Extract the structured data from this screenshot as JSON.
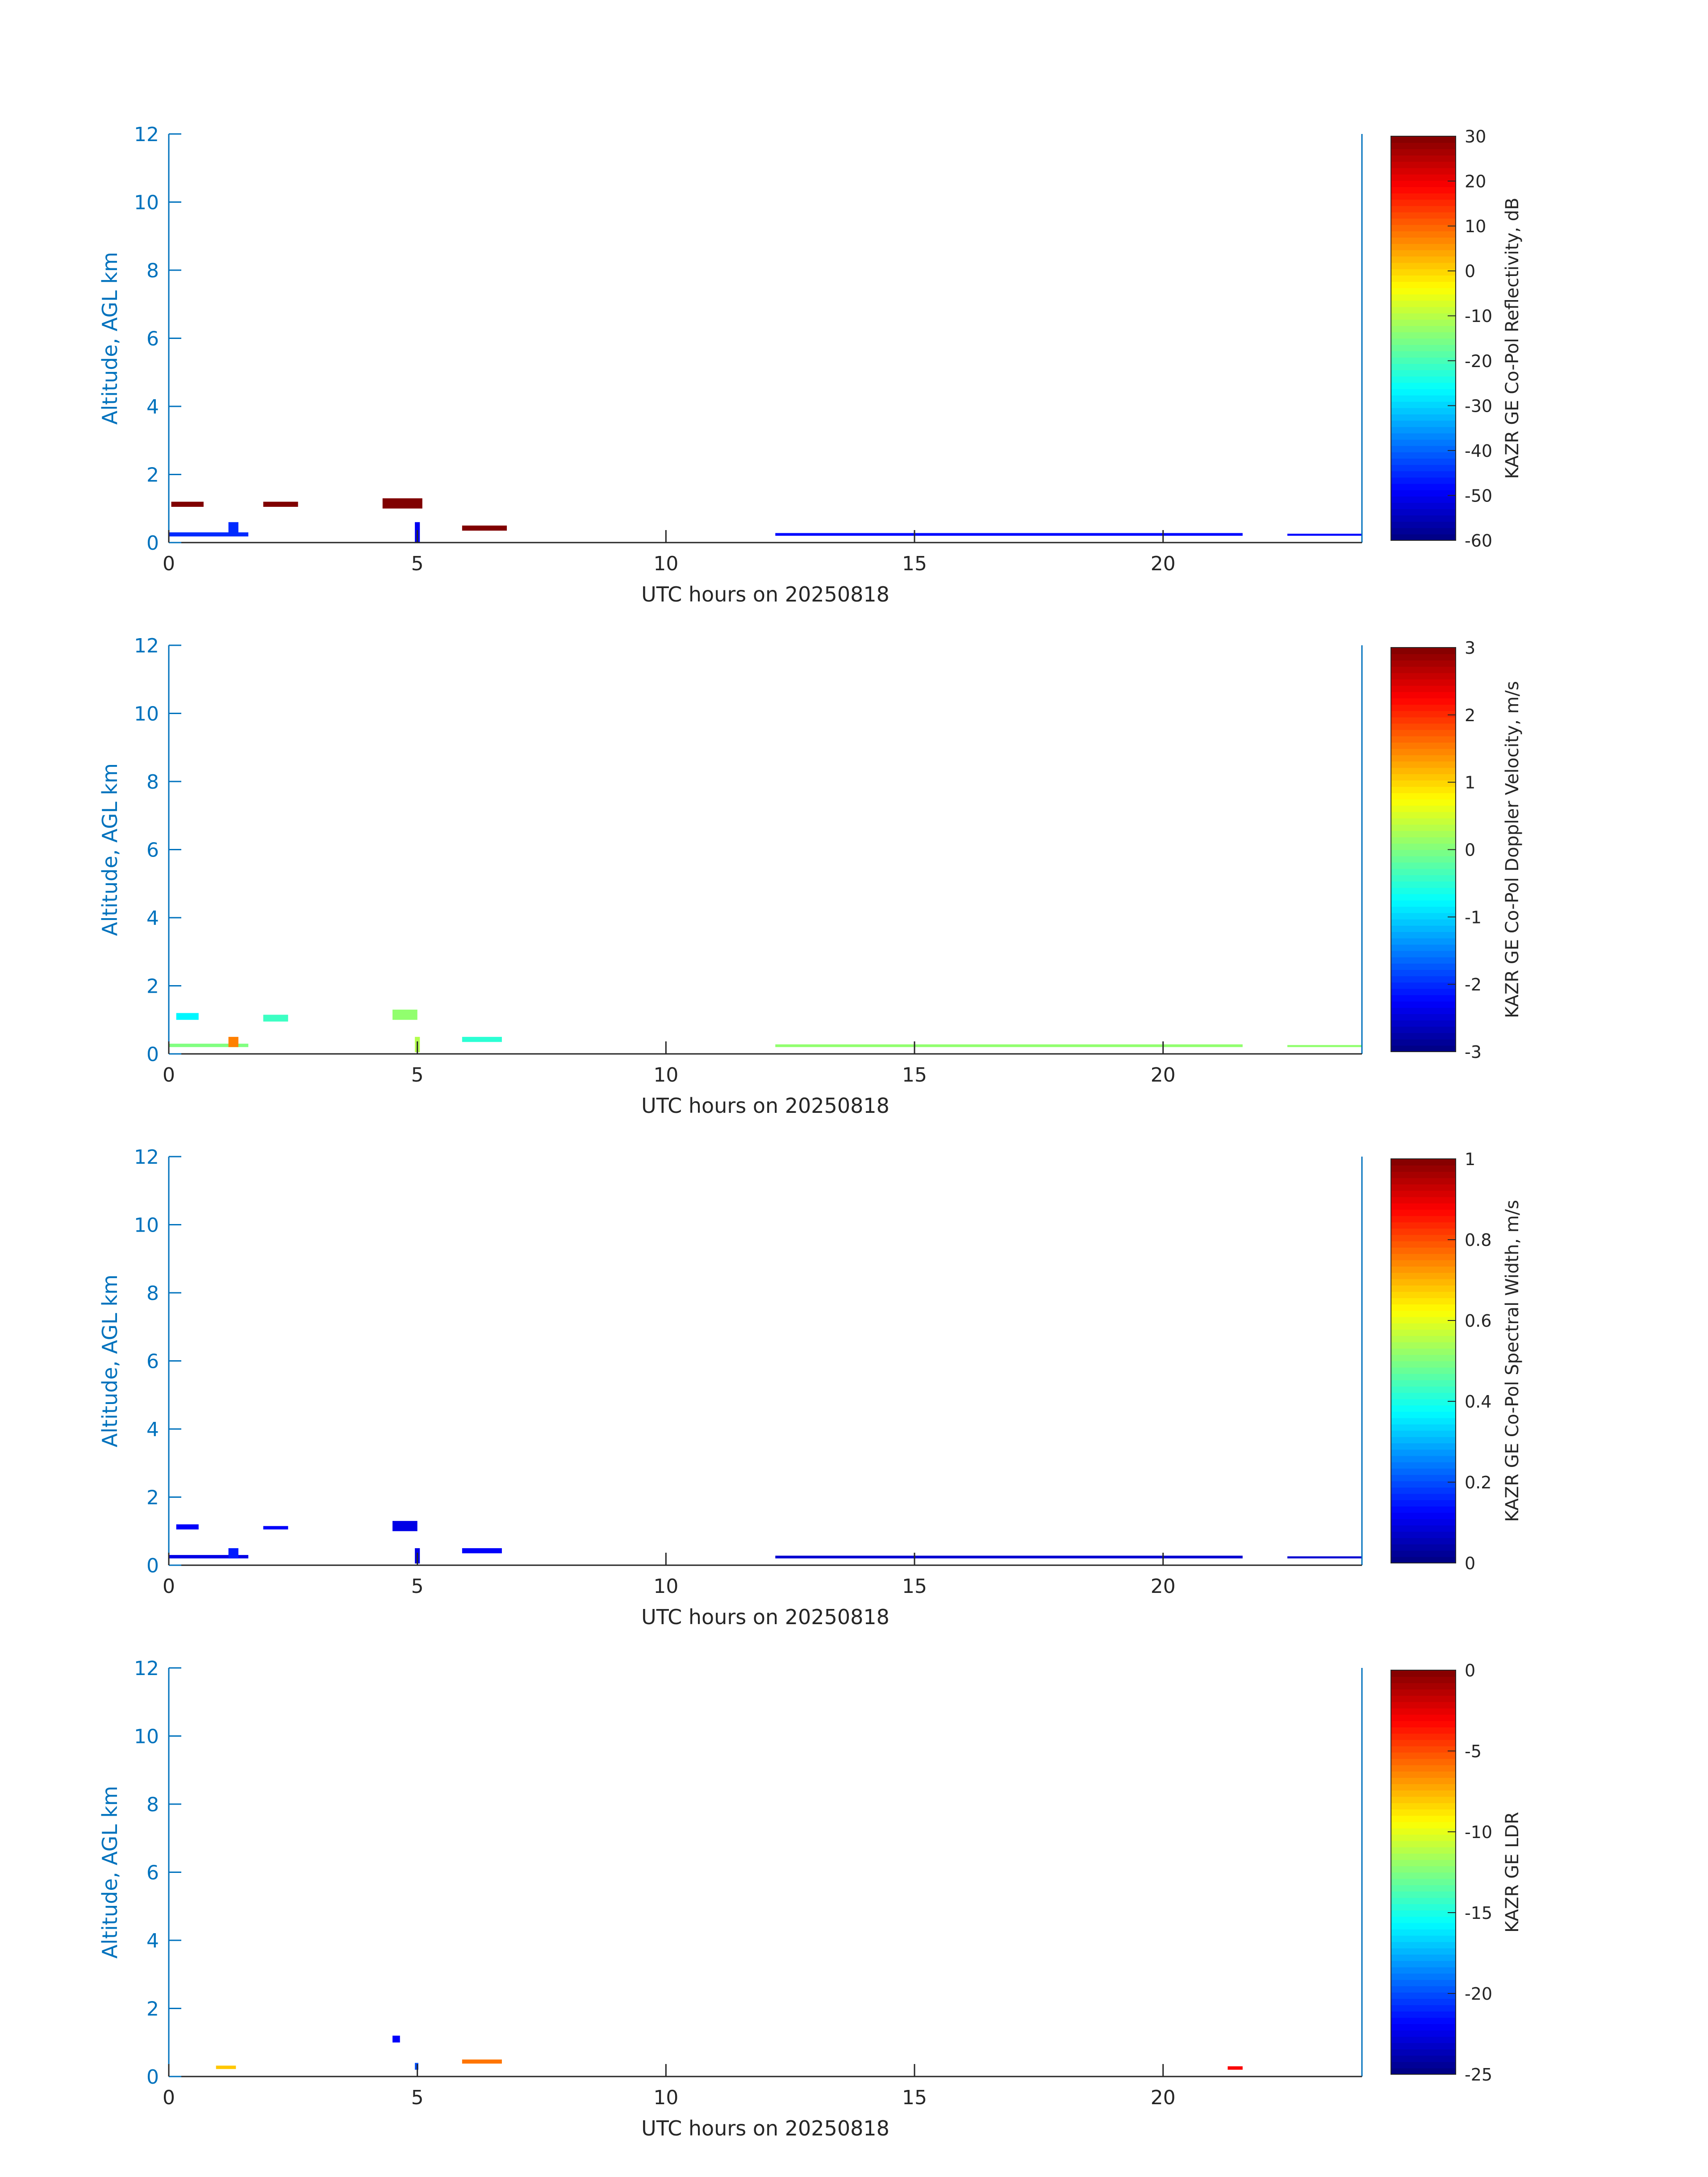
{
  "chart_data": [
    {
      "type": "heatmap",
      "title": "",
      "xlabel": "UTC hours on 20250818",
      "ylabel": "Altitude, AGL km",
      "xlim": [
        0,
        24
      ],
      "ylim": [
        0,
        12
      ],
      "x_ticks": [
        0,
        5,
        10,
        15,
        20
      ],
      "y_ticks": [
        0,
        2,
        4,
        6,
        8,
        10,
        12
      ],
      "colorbar": {
        "label": "KAZR GE Co-Pol Reflectivity, dB",
        "min": -60,
        "max": 30,
        "ticks": [
          -60,
          -50,
          -40,
          -30,
          -20,
          -10,
          0,
          10,
          20,
          30
        ]
      },
      "grid": false,
      "regions": [
        {
          "x": [
            0.05,
            0.7
          ],
          "y": [
            1.05,
            1.2
          ],
          "value": 30
        },
        {
          "x": [
            1.9,
            2.6
          ],
          "y": [
            1.05,
            1.2
          ],
          "value": 30
        },
        {
          "x": [
            4.3,
            5.1
          ],
          "y": [
            1.0,
            1.3
          ],
          "value": 30
        },
        {
          "x": [
            5.9,
            6.8
          ],
          "y": [
            0.35,
            0.5
          ],
          "value": 30
        },
        {
          "x": [
            0.0,
            1.6
          ],
          "y": [
            0.18,
            0.3
          ],
          "value": -45
        },
        {
          "x": [
            1.2,
            1.4
          ],
          "y": [
            0.2,
            0.6
          ],
          "value": -45
        },
        {
          "x": [
            4.95,
            5.05
          ],
          "y": [
            0.0,
            0.6
          ],
          "value": -50
        },
        {
          "x": [
            12.2,
            21.6
          ],
          "y": [
            0.2,
            0.28
          ],
          "value": -48
        },
        {
          "x": [
            22.5,
            24.0
          ],
          "y": [
            0.2,
            0.26
          ],
          "value": -48
        }
      ]
    },
    {
      "type": "heatmap",
      "title": "",
      "xlabel": "UTC hours on 20250818",
      "ylabel": "Altitude, AGL km",
      "xlim": [
        0,
        24
      ],
      "ylim": [
        0,
        12
      ],
      "x_ticks": [
        0,
        5,
        10,
        15,
        20
      ],
      "y_ticks": [
        0,
        2,
        4,
        6,
        8,
        10,
        12
      ],
      "colorbar": {
        "label": "KAZR GE Co-Pol Doppler Velocity, m/s",
        "min": -3,
        "max": 3,
        "ticks": [
          -3,
          -2,
          -1,
          0,
          1,
          2,
          3
        ]
      },
      "grid": false,
      "regions": [
        {
          "x": [
            0.15,
            0.6
          ],
          "y": [
            1.0,
            1.2
          ],
          "value": -0.8
        },
        {
          "x": [
            1.9,
            2.4
          ],
          "y": [
            0.95,
            1.15
          ],
          "value": -0.4
        },
        {
          "x": [
            4.5,
            5.0
          ],
          "y": [
            1.0,
            1.3
          ],
          "value": 0.1
        },
        {
          "x": [
            4.95,
            5.05
          ],
          "y": [
            0.05,
            0.5
          ],
          "value": 0.3
        },
        {
          "x": [
            5.9,
            6.7
          ],
          "y": [
            0.35,
            0.5
          ],
          "value": -0.5
        },
        {
          "x": [
            0.0,
            1.6
          ],
          "y": [
            0.2,
            0.3
          ],
          "value": 0.0
        },
        {
          "x": [
            1.2,
            1.4
          ],
          "y": [
            0.2,
            0.5
          ],
          "value": 1.5
        },
        {
          "x": [
            12.2,
            21.6
          ],
          "y": [
            0.2,
            0.28
          ],
          "value": 0.1
        },
        {
          "x": [
            22.5,
            24.0
          ],
          "y": [
            0.2,
            0.26
          ],
          "value": 0.1
        }
      ]
    },
    {
      "type": "heatmap",
      "title": "",
      "xlabel": "UTC hours on 20250818",
      "ylabel": "Altitude, AGL km",
      "xlim": [
        0,
        24
      ],
      "ylim": [
        0,
        12
      ],
      "x_ticks": [
        0,
        5,
        10,
        15,
        20
      ],
      "y_ticks": [
        0,
        2,
        4,
        6,
        8,
        10,
        12
      ],
      "colorbar": {
        "label": "KAZR GE Co-Pol Spectral Width, m/s",
        "min": 0,
        "max": 1,
        "ticks": [
          0,
          0.2,
          0.4,
          0.6,
          0.8,
          1
        ]
      },
      "grid": false,
      "regions": [
        {
          "x": [
            0.15,
            0.6
          ],
          "y": [
            1.05,
            1.2
          ],
          "value": 0.12
        },
        {
          "x": [
            1.9,
            2.4
          ],
          "y": [
            1.05,
            1.15
          ],
          "value": 0.12
        },
        {
          "x": [
            4.5,
            5.0
          ],
          "y": [
            1.0,
            1.3
          ],
          "value": 0.1
        },
        {
          "x": [
            4.95,
            5.05
          ],
          "y": [
            0.05,
            0.5
          ],
          "value": 0.1
        },
        {
          "x": [
            5.9,
            6.7
          ],
          "y": [
            0.35,
            0.5
          ],
          "value": 0.12
        },
        {
          "x": [
            0.0,
            1.6
          ],
          "y": [
            0.2,
            0.3
          ],
          "value": 0.1
        },
        {
          "x": [
            1.2,
            1.4
          ],
          "y": [
            0.2,
            0.5
          ],
          "value": 0.15
        },
        {
          "x": [
            12.2,
            21.6
          ],
          "y": [
            0.2,
            0.28
          ],
          "value": 0.08
        },
        {
          "x": [
            22.5,
            24.0
          ],
          "y": [
            0.2,
            0.26
          ],
          "value": 0.08
        }
      ]
    },
    {
      "type": "heatmap",
      "title": "",
      "xlabel": "UTC hours on 20250818",
      "ylabel": "Altitude, AGL km",
      "xlim": [
        0,
        24
      ],
      "ylim": [
        0,
        12
      ],
      "x_ticks": [
        0,
        5,
        10,
        15,
        20
      ],
      "y_ticks": [
        0,
        2,
        4,
        6,
        8,
        10,
        12
      ],
      "colorbar": {
        "label": "KAZR GE LDR",
        "min": -25,
        "max": 0,
        "ticks": [
          -25,
          -20,
          -15,
          -10,
          -5,
          0
        ]
      },
      "grid": false,
      "regions": [
        {
          "x": [
            4.5,
            4.65
          ],
          "y": [
            1.0,
            1.2
          ],
          "value": -22
        },
        {
          "x": [
            0.95,
            1.35
          ],
          "y": [
            0.22,
            0.32
          ],
          "value": -8
        },
        {
          "x": [
            5.9,
            6.7
          ],
          "y": [
            0.38,
            0.5
          ],
          "value": -6
        },
        {
          "x": [
            4.95,
            5.02
          ],
          "y": [
            0.2,
            0.4
          ],
          "value": -20
        },
        {
          "x": [
            21.3,
            21.6
          ],
          "y": [
            0.2,
            0.3
          ],
          "value": -3
        }
      ]
    }
  ],
  "colors": {
    "axis": "#0072bd",
    "text": "#262626",
    "colormap": "jet"
  }
}
